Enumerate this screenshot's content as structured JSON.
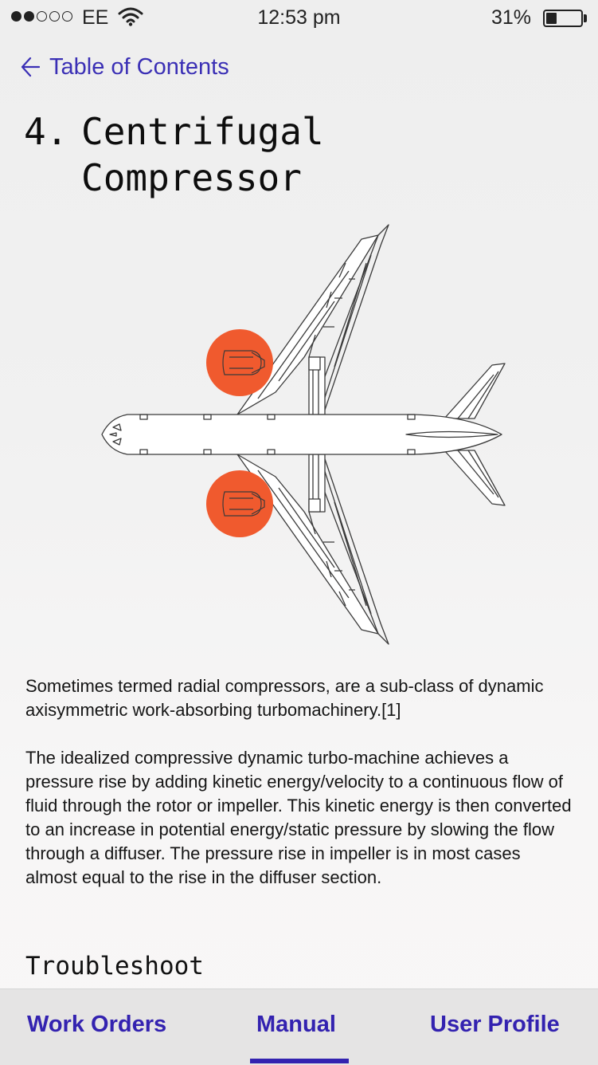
{
  "status_bar": {
    "signal_dots_filled": 2,
    "signal_dots_total": 5,
    "carrier": "EE",
    "time": "12:53 pm",
    "battery_percent": "31%",
    "battery_level": 0.31
  },
  "nav": {
    "back_label": "Table of Contents"
  },
  "article": {
    "number": "4.",
    "title": "Centrifugal Compressor",
    "paragraphs": [
      "Sometimes termed radial compressors, are a sub-class of dynamic axisymmetric work-absorbing turbomachinery.[1]",
      "The idealized compressive dynamic turbo-machine achieves a pressure rise by adding kinetic energy/velocity to a continuous flow of fluid through the rotor or impeller. This kinetic energy is then converted to an increase in potential energy/static pressure by slowing the flow through a diffuser. The pressure rise in impeller is in most cases almost equal to the rise in the diffuser section."
    ],
    "section_heading": "Troubleshoot"
  },
  "illustration": {
    "subject": "airplane-top-view",
    "highlight_color": "#f05a2e"
  },
  "tabs": [
    {
      "label": "Work Orders",
      "active": false
    },
    {
      "label": "Manual",
      "active": true
    },
    {
      "label": "User Profile",
      "active": false
    }
  ],
  "colors": {
    "accent": "#3322b0",
    "link": "#3a2fb5",
    "highlight": "#f05a2e"
  }
}
